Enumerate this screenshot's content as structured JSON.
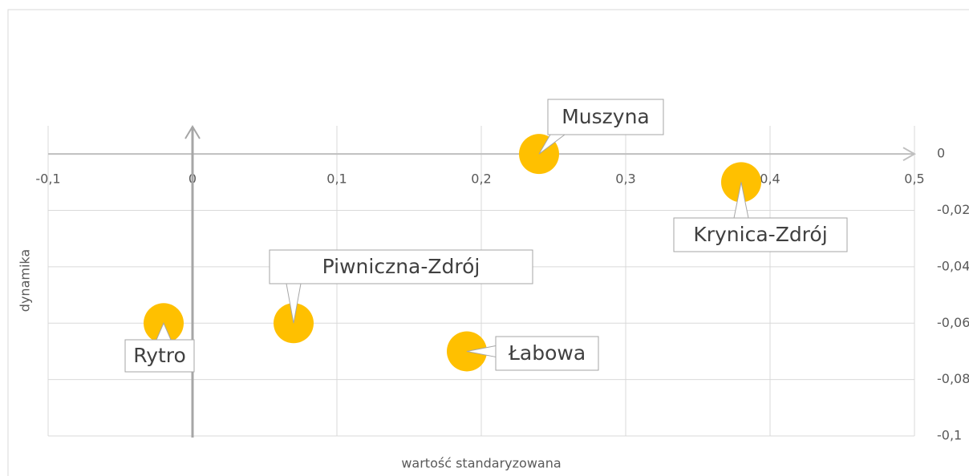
{
  "chart_data": {
    "type": "scatter",
    "xlabel": "wartość standaryzowana",
    "ylabel": "dynamika",
    "series": [
      {
        "color": "#FFC000",
        "x": [
          0.24,
          0.38,
          0.07,
          -0.02,
          0.19
        ],
        "values": [
          0,
          -0.01,
          -0.06,
          -0.06,
          -0.07
        ],
        "labels": [
          "Muszyna",
          "Krynica-Zdrój",
          "Piwniczna-Zdrój",
          "Rytro",
          "Łabowa"
        ]
      }
    ],
    "xlim": [
      -0.1,
      0.5
    ],
    "xticks": [
      {
        "value": -0.1,
        "label": "-0,1"
      },
      0,
      {
        "value": 0.1,
        "label": "0,1"
      },
      {
        "value": 0.2,
        "label": "0,2"
      },
      {
        "value": 0.3,
        "label": "0,3"
      },
      {
        "value": 0.4,
        "label": "0,4"
      },
      {
        "value": 0.5,
        "label": "0,5"
      }
    ],
    "ylim": [
      -0.1,
      0.01
    ],
    "yticks": [
      0,
      {
        "value": -0.02,
        "label": "-0,02"
      },
      {
        "value": -0.04,
        "label": "-0,04"
      },
      {
        "value": -0.06,
        "label": "-0,06"
      },
      {
        "value": -0.08,
        "label": "-0,08"
      },
      {
        "value": -0.1,
        "label": "-0,1"
      }
    ],
    "grid": true
  }
}
